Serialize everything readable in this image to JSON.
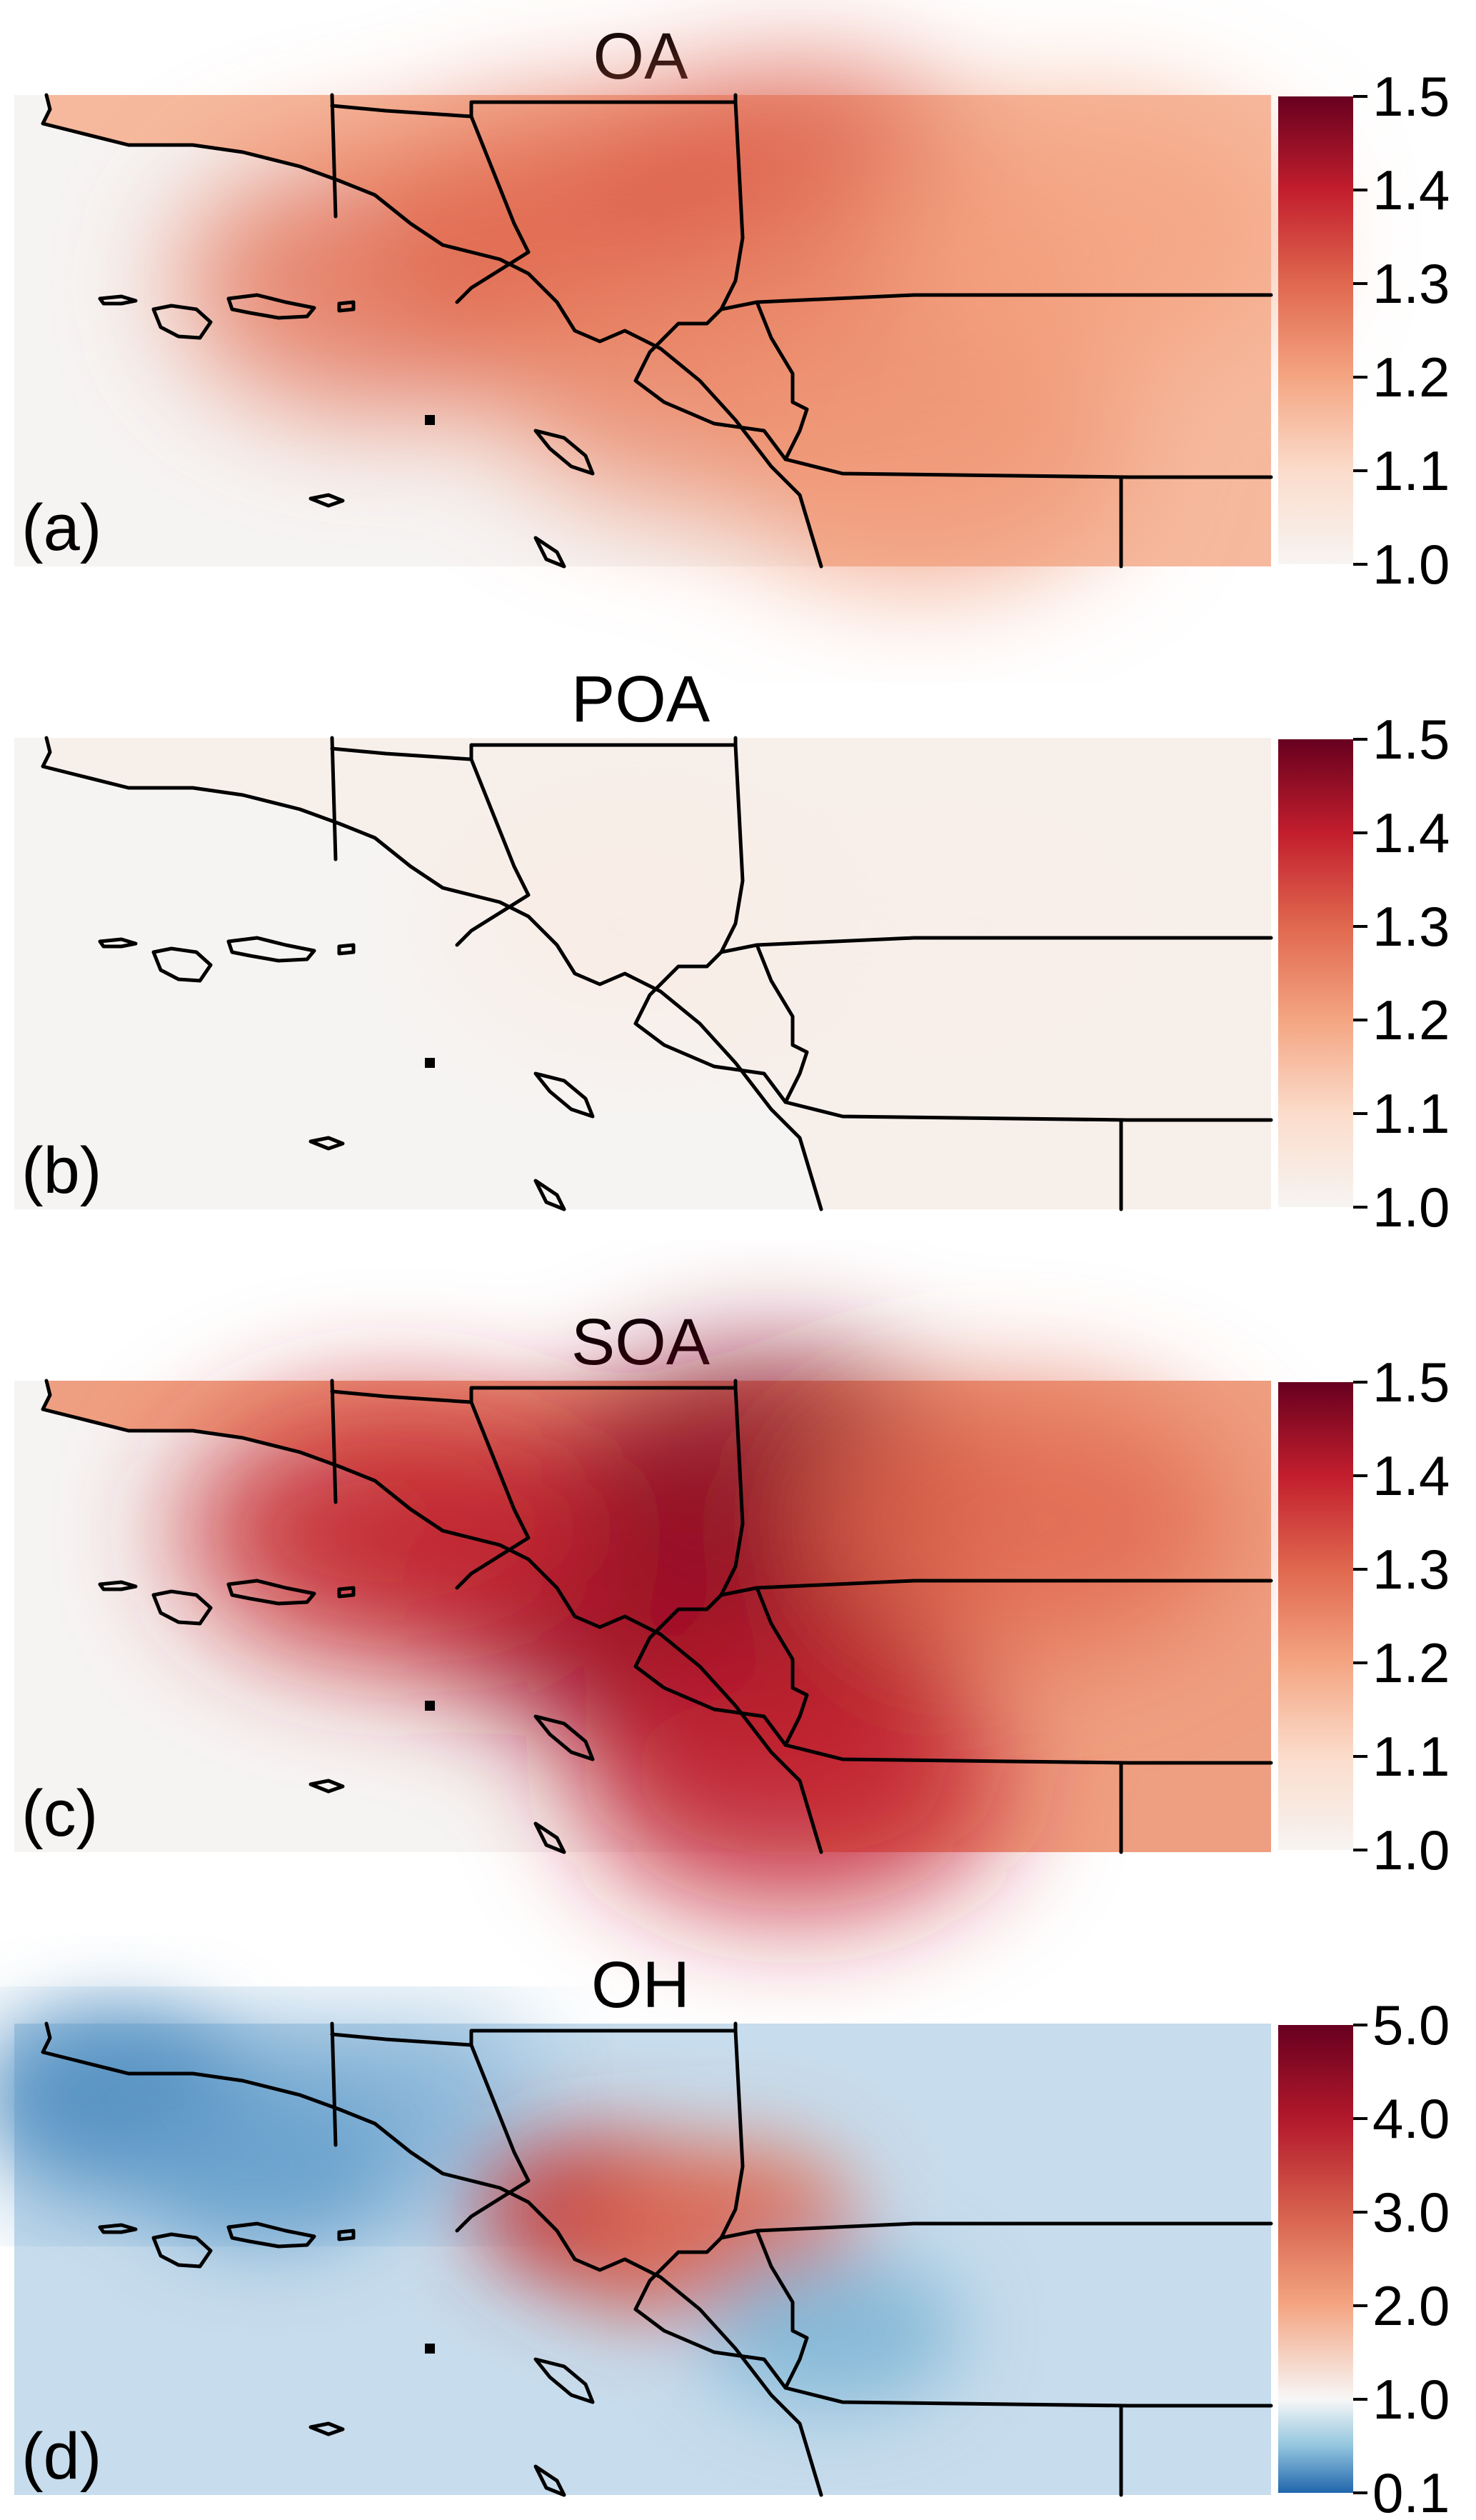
{
  "panels": [
    {
      "id": "a",
      "title": "OA",
      "label": "(a)",
      "colormap": "reds",
      "colorbar": {
        "ticks": [
          "1.5",
          "1.4",
          "1.3",
          "1.2",
          "1.1",
          "1.0"
        ],
        "min": 1.0,
        "max": 1.5
      },
      "field_hotspots": [
        {
          "lon": 0.3,
          "lat": 0.6,
          "value": 1.28
        },
        {
          "lon": 0.45,
          "lat": 0.7,
          "value": 1.3
        },
        {
          "lon": 0.62,
          "lat": 0.78,
          "value": 1.32
        },
        {
          "lon": 0.7,
          "lat": 0.55,
          "value": 1.26
        },
        {
          "lon": 0.55,
          "lat": 0.4,
          "value": 1.25
        },
        {
          "lon": 0.72,
          "lat": 0.25,
          "value": 1.22
        },
        {
          "lon": 0.85,
          "lat": 0.7,
          "value": 1.2
        }
      ]
    },
    {
      "id": "b",
      "title": "POA",
      "label": "(b)",
      "colormap": "reds",
      "colorbar": {
        "ticks": [
          "1.5",
          "1.4",
          "1.3",
          "1.2",
          "1.1",
          "1.0"
        ],
        "min": 1.0,
        "max": 1.5
      },
      "field_hotspots": [
        {
          "lon": 0.5,
          "lat": 0.6,
          "value": 1.03
        },
        {
          "lon": 0.75,
          "lat": 0.6,
          "value": 1.02
        }
      ]
    },
    {
      "id": "c",
      "title": "SOA",
      "label": "(c)",
      "colormap": "reds",
      "colorbar": {
        "ticks": [
          "1.5",
          "1.4",
          "1.3",
          "1.2",
          "1.1",
          "1.0"
        ],
        "min": 1.0,
        "max": 1.5
      },
      "field_hotspots": [
        {
          "lon": 0.38,
          "lat": 0.65,
          "value": 1.42
        },
        {
          "lon": 0.48,
          "lat": 0.55,
          "value": 1.45
        },
        {
          "lon": 0.6,
          "lat": 0.78,
          "value": 1.46
        },
        {
          "lon": 0.58,
          "lat": 0.4,
          "value": 1.44
        },
        {
          "lon": 0.62,
          "lat": 0.15,
          "value": 1.4
        },
        {
          "lon": 0.3,
          "lat": 0.68,
          "value": 1.38
        },
        {
          "lon": 0.8,
          "lat": 0.7,
          "value": 1.3
        }
      ]
    },
    {
      "id": "d",
      "title": "OH",
      "label": "(d)",
      "colormap": "diverging",
      "colorbar": {
        "ticks": [
          "5.0",
          "4.0",
          "3.0",
          "2.0",
          "1.0",
          "0.1"
        ],
        "min": 0.1,
        "max": 5.0
      },
      "field_hotspots": [
        {
          "lon": 0.47,
          "lat": 0.6,
          "value": 3.6
        },
        {
          "lon": 0.52,
          "lat": 0.55,
          "value": 3.3
        },
        {
          "lon": 0.57,
          "lat": 0.58,
          "value": 2.8
        },
        {
          "lon": 0.08,
          "lat": 0.85,
          "value": 0.3
        },
        {
          "lon": 0.2,
          "lat": 0.7,
          "value": 0.4
        },
        {
          "lon": 0.65,
          "lat": 0.35,
          "value": 0.5
        }
      ]
    }
  ]
}
